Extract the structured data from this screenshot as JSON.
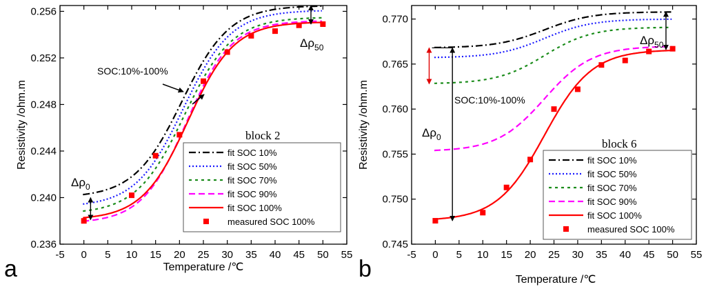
{
  "chart_data": [
    {
      "panel_label": "a",
      "type": "line",
      "annotation_block": "block 2",
      "xlabel": "Temperature /℃",
      "ylabel": "Resistivity /ohm.m",
      "xlim": [
        -5,
        55
      ],
      "ylim": [
        0.236,
        0.2565
      ],
      "x_ticks": [
        -5,
        0,
        5,
        10,
        15,
        20,
        25,
        30,
        35,
        40,
        45,
        50,
        55
      ],
      "y_ticks": [
        0.236,
        0.24,
        0.244,
        0.248,
        0.252,
        0.256
      ],
      "y_tick_labels": [
        "0.236",
        "0.240",
        "0.244",
        "0.248",
        "0.252",
        "0.256"
      ],
      "annotations": {
        "soc_range": "SOC:10%-100%",
        "delta_rho_0": "Δρ",
        "delta_rho_0_sub": "0",
        "delta_rho_50": "Δρ",
        "delta_rho_50_sub": "50"
      },
      "series": [
        {
          "name": "fit SOC 10%",
          "style": "dashdot",
          "color": "#000000",
          "params": [
            0.24,
            0.2565,
            20.5,
            5.0
          ]
        },
        {
          "name": "fit SOC 50%",
          "style": "dot",
          "color": "#1a1aff",
          "params": [
            0.2392,
            0.2561,
            20.8,
            5.0
          ]
        },
        {
          "name": "fit SOC 70%",
          "style": "dash-short",
          "color": "#1a8c1a",
          "params": [
            0.2386,
            0.2555,
            21.0,
            5.0
          ]
        },
        {
          "name": "fit SOC 90%",
          "style": "dash-long",
          "color": "#ff00ff",
          "params": [
            0.2378,
            0.2552,
            21.5,
            4.7
          ]
        },
        {
          "name": "fit SOC 100%",
          "style": "solid",
          "color": "#ff0000",
          "params": [
            0.2381,
            0.2551,
            21.8,
            4.8
          ]
        }
      ],
      "measured": {
        "name": "measured SOC 100%",
        "color": "#ff0000",
        "x": [
          0,
          10,
          15,
          20,
          25,
          30,
          35,
          40,
          45,
          50
        ],
        "y": [
          0.238,
          0.2402,
          0.2436,
          0.2454,
          0.25,
          0.2525,
          0.2539,
          0.2543,
          0.2548,
          0.2549
        ]
      }
    },
    {
      "panel_label": "b",
      "type": "line",
      "annotation_block": "block 6",
      "xlabel": "Temperature /℃",
      "ylabel": "Resistivity /ohm.m",
      "xlim": [
        -5,
        55
      ],
      "ylim": [
        0.745,
        0.7715
      ],
      "x_ticks": [
        -5,
        0,
        5,
        10,
        15,
        20,
        25,
        30,
        35,
        40,
        45,
        50,
        55
      ],
      "y_ticks": [
        0.745,
        0.75,
        0.755,
        0.76,
        0.765,
        0.77
      ],
      "y_tick_labels": [
        "0.745",
        "0.750",
        "0.755",
        "0.760",
        "0.765",
        "0.770"
      ],
      "annotations": {
        "soc_range": "SOC:10%-100%",
        "delta_rho_0": "Δρ",
        "delta_rho_0_sub": "0",
        "delta_rho_50": "Δρ",
        "delta_rho_50_sub": "50"
      },
      "series": [
        {
          "name": "fit SOC 10%",
          "style": "dashdot",
          "color": "#000000",
          "params": [
            0.7668,
            0.7708,
            23.0,
            5.0
          ]
        },
        {
          "name": "fit SOC 50%",
          "style": "dot",
          "color": "#1a1aff",
          "params": [
            0.7657,
            0.77,
            23.0,
            5.0
          ]
        },
        {
          "name": "fit SOC 70%",
          "style": "dash-short",
          "color": "#1a8c1a",
          "params": [
            0.7628,
            0.7691,
            23.0,
            5.0
          ]
        },
        {
          "name": "fit SOC 90%",
          "style": "dash-long",
          "color": "#ff00ff",
          "params": [
            0.7553,
            0.767,
            23.0,
            5.0
          ]
        },
        {
          "name": "fit SOC 100%",
          "style": "solid",
          "color": "#ff0000",
          "params": [
            0.7476,
            0.7666,
            23.0,
            5.0
          ]
        }
      ],
      "measured": {
        "name": "measured SOC 100%",
        "color": "#ff0000",
        "x": [
          0,
          10,
          15,
          20,
          25,
          30,
          35,
          40,
          45,
          50
        ],
        "y": [
          0.7476,
          0.7485,
          0.7513,
          0.7544,
          0.76,
          0.7622,
          0.7649,
          0.7654,
          0.7664,
          0.7667
        ]
      }
    }
  ]
}
